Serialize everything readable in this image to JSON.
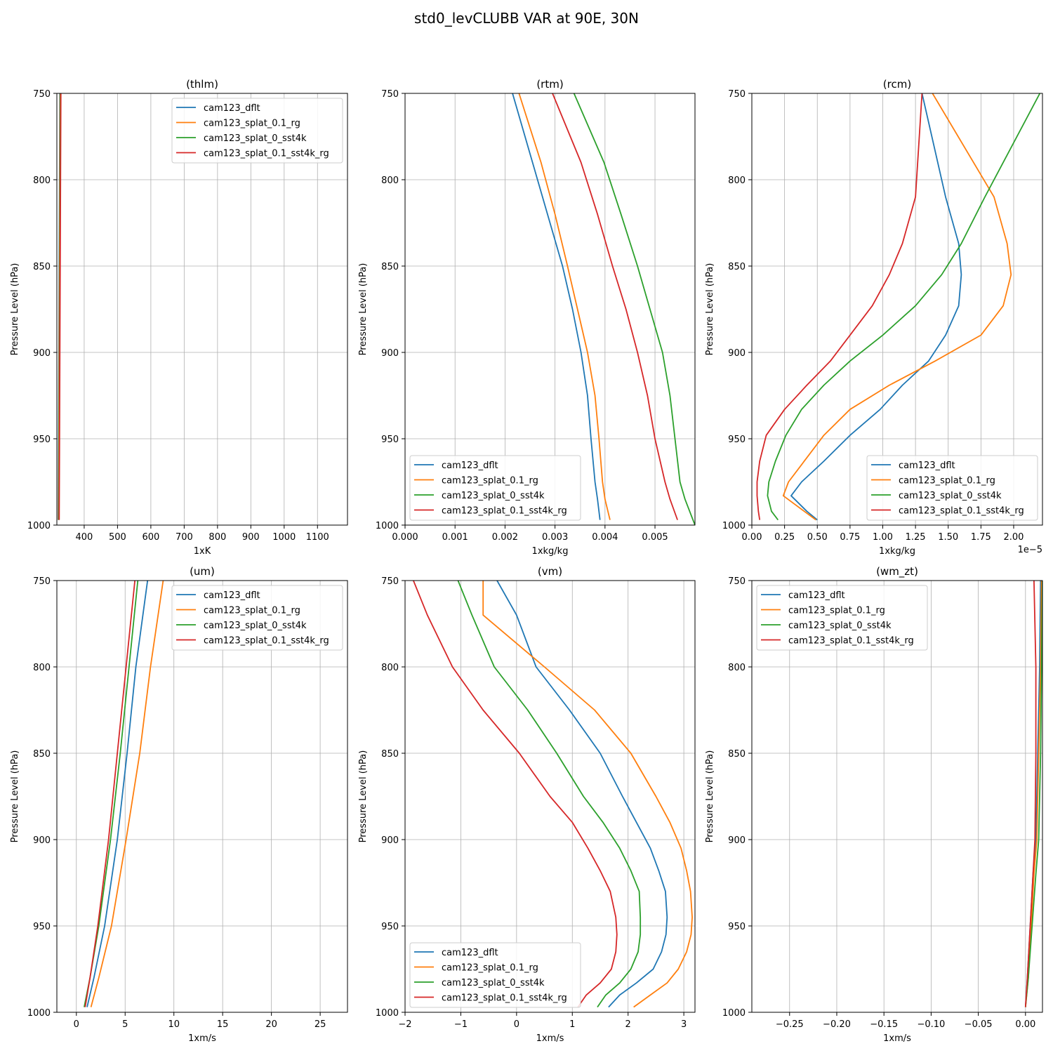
{
  "figure": {
    "title": "std0_levCLUBB VAR at 90E, 30N",
    "ylabel": "Pressure Level (hPa)"
  },
  "series_styles": [
    {
      "name": "cam123_dflt",
      "color": "#1f77b4"
    },
    {
      "name": "cam123_splat_0.1_rg",
      "color": "#ff7f0e"
    },
    {
      "name": "cam123_splat_0_sst4k",
      "color": "#2ca02c"
    },
    {
      "name": "cam123_splat_0.1_sst4k_rg",
      "color": "#d62728"
    }
  ],
  "chart_data": [
    {
      "type": "line",
      "title": "(thlm)",
      "xlabel": "1xK",
      "ylabel": "Pressure Level (hPa)",
      "xlim": [
        318,
        1190
      ],
      "ylim": [
        1000,
        750
      ],
      "y_inverted": true,
      "xticks": [
        400,
        500,
        600,
        700,
        800,
        900,
        1000,
        1100
      ],
      "xtick_labels": [
        "400",
        "500",
        "600",
        "700",
        "800",
        "900",
        "1000",
        "1100"
      ],
      "yticks": [
        750,
        800,
        850,
        900,
        950,
        1000
      ],
      "ytick_labels": [
        "750",
        "800",
        "850",
        "900",
        "950",
        "1000"
      ],
      "grid": true,
      "legend": "upper right",
      "series": [
        {
          "name": "cam123_dflt",
          "x": [
            322,
            323,
            324,
            325,
            326,
            327
          ],
          "y": [
            997,
            950,
            900,
            850,
            800,
            750
          ]
        },
        {
          "name": "cam123_splat_0.1_rg",
          "x": [
            323,
            324,
            325,
            326,
            327,
            328
          ],
          "y": [
            997,
            950,
            900,
            850,
            800,
            750
          ]
        },
        {
          "name": "cam123_splat_0_sst4k",
          "x": [
            324,
            325,
            326,
            327,
            328,
            329
          ],
          "y": [
            997,
            950,
            900,
            850,
            800,
            750
          ]
        },
        {
          "name": "cam123_splat_0.1_sst4k_rg",
          "x": [
            325,
            326,
            327,
            328,
            329,
            330
          ],
          "y": [
            997,
            950,
            900,
            850,
            800,
            750
          ]
        }
      ]
    },
    {
      "type": "line",
      "title": "(rtm)",
      "xlabel": "1xkg/kg",
      "ylabel": "Pressure Level (hPa)",
      "xlim": [
        0,
        0.0058
      ],
      "ylim": [
        1000,
        750
      ],
      "y_inverted": true,
      "xticks": [
        0,
        0.001,
        0.002,
        0.003,
        0.004,
        0.005
      ],
      "xtick_labels": [
        "0.000",
        "0.001",
        "0.002",
        "0.003",
        "0.004",
        "0.005"
      ],
      "yticks": [
        750,
        800,
        850,
        900,
        950,
        1000
      ],
      "ytick_labels": [
        "750",
        "800",
        "850",
        "900",
        "950",
        "1000"
      ],
      "grid": true,
      "legend": "lower left",
      "series": [
        {
          "name": "cam123_dflt",
          "x": [
            0.0039,
            0.00385,
            0.0038,
            0.00372,
            0.00365,
            0.00352,
            0.00335,
            0.00315,
            0.00285,
            0.00255,
            0.00215
          ],
          "y": [
            997,
            985,
            975,
            950,
            925,
            900,
            875,
            850,
            820,
            790,
            750
          ]
        },
        {
          "name": "cam123_splat_0.1_rg",
          "x": [
            0.0041,
            0.004,
            0.00395,
            0.00388,
            0.0038,
            0.00365,
            0.00345,
            0.00325,
            0.003,
            0.00272,
            0.00228
          ],
          "y": [
            997,
            985,
            975,
            950,
            925,
            900,
            875,
            850,
            820,
            790,
            750
          ]
        },
        {
          "name": "cam123_splat_0_sst4k",
          "x": [
            0.0058,
            0.0056,
            0.0055,
            0.0054,
            0.0053,
            0.00515,
            0.0049,
            0.00465,
            0.00432,
            0.00398,
            0.00338
          ],
          "y": [
            1000,
            985,
            975,
            950,
            925,
            900,
            875,
            850,
            820,
            790,
            750
          ]
        },
        {
          "name": "cam123_splat_0.1_sst4k_rg",
          "x": [
            0.00545,
            0.0053,
            0.0052,
            0.005,
            0.00485,
            0.00465,
            0.00442,
            0.00415,
            0.00385,
            0.00352,
            0.00295
          ],
          "y": [
            997,
            985,
            975,
            950,
            925,
            900,
            875,
            850,
            820,
            790,
            750
          ]
        }
      ]
    },
    {
      "type": "line",
      "title": "(rcm)",
      "xlabel": "1xkg/kg",
      "ylabel": "Pressure Level (hPa)",
      "offset_text": "1e−5",
      "xscale_factor": 1e-05,
      "xlim": [
        0,
        2.22
      ],
      "ylim": [
        1000,
        750
      ],
      "y_inverted": true,
      "xticks": [
        0,
        0.25,
        0.5,
        0.75,
        1.0,
        1.25,
        1.5,
        1.75,
        2.0
      ],
      "xtick_labels": [
        "0.00",
        "0.25",
        "0.50",
        "0.75",
        "1.00",
        "1.25",
        "1.50",
        "1.75",
        "2.00"
      ],
      "yticks": [
        750,
        800,
        850,
        900,
        950,
        1000
      ],
      "ytick_labels": [
        "750",
        "800",
        "850",
        "900",
        "950",
        "1000"
      ],
      "grid": true,
      "legend": "lower right",
      "series": [
        {
          "name": "cam123_dflt",
          "x": [
            0.5,
            0.42,
            0.3,
            0.38,
            0.55,
            0.75,
            0.98,
            1.15,
            1.35,
            1.48,
            1.58,
            1.6,
            1.58,
            1.48,
            1.3
          ],
          "y": [
            997,
            992,
            983,
            975,
            963,
            948,
            933,
            919,
            905,
            890,
            873,
            855,
            837,
            810,
            750
          ]
        },
        {
          "name": "cam123_splat_0.1_rg",
          "x": [
            0.49,
            0.4,
            0.24,
            0.28,
            0.4,
            0.55,
            0.75,
            1.05,
            1.4,
            1.75,
            1.92,
            1.98,
            1.95,
            1.85,
            1.38
          ],
          "y": [
            997,
            992,
            983,
            975,
            963,
            948,
            933,
            919,
            905,
            890,
            873,
            855,
            837,
            810,
            750
          ]
        },
        {
          "name": "cam123_splat_0_sst4k",
          "x": [
            0.2,
            0.15,
            0.12,
            0.13,
            0.18,
            0.26,
            0.38,
            0.55,
            0.75,
            1.0,
            1.25,
            1.45,
            1.6,
            1.78,
            2.2
          ],
          "y": [
            997,
            992,
            983,
            975,
            963,
            948,
            933,
            919,
            905,
            890,
            873,
            855,
            837,
            810,
            750
          ]
        },
        {
          "name": "cam123_splat_0.1_sst4k_rg",
          "x": [
            0.06,
            0.05,
            0.04,
            0.04,
            0.06,
            0.11,
            0.25,
            0.42,
            0.6,
            0.75,
            0.92,
            1.05,
            1.15,
            1.25,
            1.3
          ],
          "y": [
            997,
            992,
            983,
            975,
            963,
            948,
            933,
            919,
            905,
            890,
            873,
            855,
            837,
            810,
            750
          ]
        }
      ]
    },
    {
      "type": "line",
      "title": "(um)",
      "xlabel": "1xm/s",
      "ylabel": "Pressure Level (hPa)",
      "xlim": [
        -2,
        27.8
      ],
      "ylim": [
        1000,
        750
      ],
      "y_inverted": true,
      "xticks": [
        0,
        5,
        10,
        15,
        20,
        25
      ],
      "xtick_labels": [
        "0",
        "5",
        "10",
        "15",
        "20",
        "25"
      ],
      "yticks": [
        750,
        800,
        850,
        900,
        950,
        1000
      ],
      "ytick_labels": [
        "750",
        "800",
        "850",
        "900",
        "950",
        "1000"
      ],
      "grid": true,
      "legend": "upper right",
      "series": [
        {
          "name": "cam123_dflt",
          "x": [
            1.1,
            1.8,
            2.9,
            4.2,
            5.2,
            6.1,
            7.3
          ],
          "y": [
            997,
            980,
            950,
            900,
            850,
            800,
            750
          ]
        },
        {
          "name": "cam123_splat_0.1_rg",
          "x": [
            1.5,
            2.3,
            3.6,
            5.1,
            6.5,
            7.6,
            8.9
          ],
          "y": [
            997,
            980,
            950,
            900,
            850,
            800,
            750
          ]
        },
        {
          "name": "cam123_splat_0_sst4k",
          "x": [
            0.8,
            1.4,
            2.3,
            3.5,
            4.5,
            5.4,
            6.3
          ],
          "y": [
            997,
            980,
            950,
            900,
            850,
            800,
            750
          ]
        },
        {
          "name": "cam123_splat_0.1_sst4k_rg",
          "x": [
            0.9,
            1.4,
            2.2,
            3.3,
            4.2,
            5.1,
            6.0
          ],
          "y": [
            997,
            980,
            950,
            900,
            850,
            800,
            750
          ]
        }
      ]
    },
    {
      "type": "line",
      "title": "(vm)",
      "xlabel": "1xm/s",
      "ylabel": "Pressure Level (hPa)",
      "xlim": [
        -2,
        3.2
      ],
      "ylim": [
        1000,
        750
      ],
      "y_inverted": true,
      "xticks": [
        -2,
        -1,
        0,
        1,
        2,
        3
      ],
      "xtick_labels": [
        "−2",
        "−1",
        "0",
        "1",
        "2",
        "3"
      ],
      "yticks": [
        750,
        800,
        850,
        900,
        950,
        1000
      ],
      "ytick_labels": [
        "750",
        "800",
        "850",
        "900",
        "950",
        "1000"
      ],
      "grid": true,
      "legend": "lower left",
      "series": [
        {
          "name": "cam123_dflt",
          "x": [
            1.65,
            1.85,
            2.15,
            2.45,
            2.6,
            2.68,
            2.7,
            2.67,
            2.55,
            2.4,
            2.15,
            1.9,
            1.5,
            0.95,
            0.35,
            0.0,
            -0.35
          ],
          "y": [
            997,
            990,
            983,
            975,
            965,
            955,
            945,
            930,
            918,
            905,
            890,
            875,
            850,
            825,
            800,
            770,
            750
          ]
        },
        {
          "name": "cam123_splat_0.1_rg",
          "x": [
            2.1,
            2.4,
            2.7,
            2.9,
            3.05,
            3.13,
            3.15,
            3.12,
            3.05,
            2.95,
            2.75,
            2.5,
            2.05,
            1.4,
            0.5,
            -0.6,
            -0.6
          ],
          "y": [
            997,
            990,
            983,
            975,
            965,
            955,
            945,
            930,
            918,
            905,
            890,
            875,
            850,
            825,
            800,
            770,
            750
          ]
        },
        {
          "name": "cam123_splat_0_sst4k",
          "x": [
            1.45,
            1.6,
            1.85,
            2.05,
            2.18,
            2.22,
            2.22,
            2.2,
            2.05,
            1.85,
            1.55,
            1.2,
            0.72,
            0.2,
            -0.4,
            -0.8,
            -1.05
          ],
          "y": [
            997,
            990,
            983,
            975,
            965,
            955,
            945,
            930,
            918,
            905,
            890,
            875,
            850,
            825,
            800,
            770,
            750
          ]
        },
        {
          "name": "cam123_splat_0.1_sst4k_rg",
          "x": [
            1.1,
            1.25,
            1.5,
            1.7,
            1.78,
            1.8,
            1.78,
            1.68,
            1.5,
            1.28,
            1.0,
            0.6,
            0.05,
            -0.6,
            -1.15,
            -1.6,
            -1.85
          ],
          "y": [
            997,
            990,
            983,
            975,
            965,
            955,
            945,
            930,
            918,
            905,
            890,
            875,
            850,
            825,
            800,
            770,
            750
          ]
        }
      ]
    },
    {
      "type": "line",
      "title": "(wm_zt)",
      "xlabel": "1xm/s",
      "ylabel": "Pressure Level (hPa)",
      "xlim": [
        -0.29,
        0.018
      ],
      "ylim": [
        1000,
        750
      ],
      "y_inverted": true,
      "xticks": [
        -0.25,
        -0.2,
        -0.15,
        -0.1,
        -0.05,
        0.0
      ],
      "xtick_labels": [
        "−0.25",
        "−0.20",
        "−0.15",
        "−0.10",
        "−0.05",
        "0.00"
      ],
      "yticks": [
        750,
        800,
        850,
        900,
        950,
        1000
      ],
      "ytick_labels": [
        "750",
        "800",
        "850",
        "900",
        "950",
        "1000"
      ],
      "grid": true,
      "legend": "upper left",
      "series": [
        {
          "name": "cam123_dflt",
          "x": [
            0.0,
            0.002,
            0.005,
            0.008,
            0.011,
            0.013,
            0.015,
            0.016
          ],
          "y": [
            997,
            980,
            950,
            920,
            900,
            850,
            800,
            750
          ]
        },
        {
          "name": "cam123_splat_0.1_rg",
          "x": [
            0.0,
            0.003,
            0.006,
            0.009,
            0.012,
            0.014,
            0.016,
            0.017
          ],
          "y": [
            997,
            980,
            950,
            920,
            900,
            850,
            800,
            750
          ]
        },
        {
          "name": "cam123_splat_0_sst4k",
          "x": [
            0.0,
            0.003,
            0.007,
            0.011,
            0.014,
            0.016,
            0.017,
            0.018
          ],
          "y": [
            997,
            980,
            950,
            920,
            900,
            850,
            800,
            750
          ]
        },
        {
          "name": "cam123_splat_0.1_sst4k_rg",
          "x": [
            0.0,
            0.002,
            0.005,
            0.008,
            0.01,
            0.011,
            0.011,
            0.009
          ],
          "y": [
            997,
            980,
            950,
            920,
            900,
            850,
            800,
            750
          ]
        }
      ]
    }
  ]
}
